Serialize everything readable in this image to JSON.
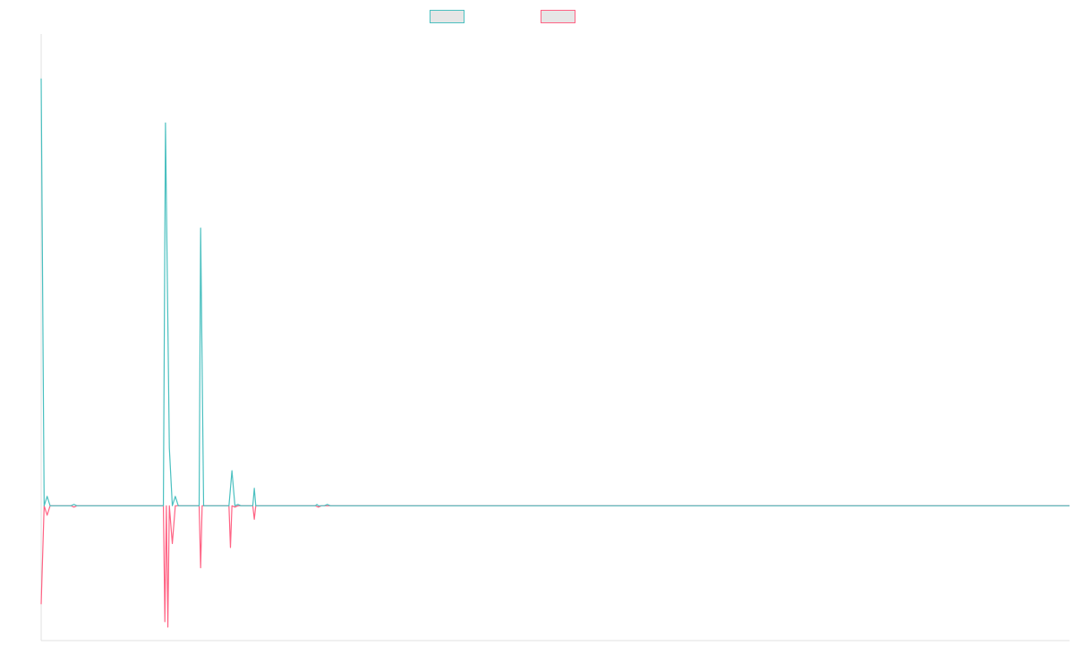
{
  "chart_data": {
    "type": "line",
    "title": "",
    "xlabel": "",
    "ylabel": "",
    "ylim": [
      -1,
      3.5
    ],
    "xlim": [
      0,
      345
    ],
    "grid": false,
    "legend_position": "top-center",
    "series": [
      {
        "label": "",
        "color": "#4bc0c0",
        "points": [
          [
            0,
            3.17
          ],
          [
            1,
            0
          ],
          [
            2,
            0.07
          ],
          [
            3,
            0
          ],
          [
            10,
            0
          ],
          [
            11,
            0.01
          ],
          [
            12,
            0
          ],
          [
            41,
            0
          ],
          [
            41.7,
            2.84
          ],
          [
            43,
            0.43
          ],
          [
            44,
            0
          ],
          [
            45,
            0.07
          ],
          [
            46,
            0
          ],
          [
            53,
            0
          ],
          [
            53.5,
            2.06
          ],
          [
            54.5,
            0
          ],
          [
            63,
            0
          ],
          [
            64,
            0.26
          ],
          [
            65,
            0
          ],
          [
            66,
            0.01
          ],
          [
            67,
            0
          ],
          [
            71,
            0
          ],
          [
            71.5,
            0.13
          ],
          [
            72,
            0
          ],
          [
            92,
            0
          ],
          [
            92.5,
            0.01
          ],
          [
            93,
            0
          ],
          [
            95,
            0
          ],
          [
            96,
            0.01
          ],
          [
            97,
            0
          ],
          [
            345,
            0
          ]
        ]
      },
      {
        "label": "",
        "color": "#ff6384",
        "points": [
          [
            0,
            -0.73
          ],
          [
            1,
            0
          ],
          [
            2,
            -0.07
          ],
          [
            3,
            0
          ],
          [
            10,
            0
          ],
          [
            11,
            -0.01
          ],
          [
            12,
            0
          ],
          [
            41,
            0
          ],
          [
            41.5,
            -0.86
          ],
          [
            42,
            0
          ],
          [
            42.5,
            -0.9
          ],
          [
            43,
            0
          ],
          [
            44,
            -0.28
          ],
          [
            45,
            0
          ],
          [
            53,
            0
          ],
          [
            53.5,
            -0.46
          ],
          [
            54,
            0
          ],
          [
            63,
            0
          ],
          [
            63.5,
            -0.31
          ],
          [
            64,
            0
          ],
          [
            65,
            -0.01
          ],
          [
            66,
            0
          ],
          [
            71,
            0
          ],
          [
            71.5,
            -0.1
          ],
          [
            72,
            0
          ],
          [
            92,
            0
          ],
          [
            93,
            -0.01
          ],
          [
            94,
            0
          ],
          [
            345,
            0
          ]
        ]
      }
    ]
  }
}
